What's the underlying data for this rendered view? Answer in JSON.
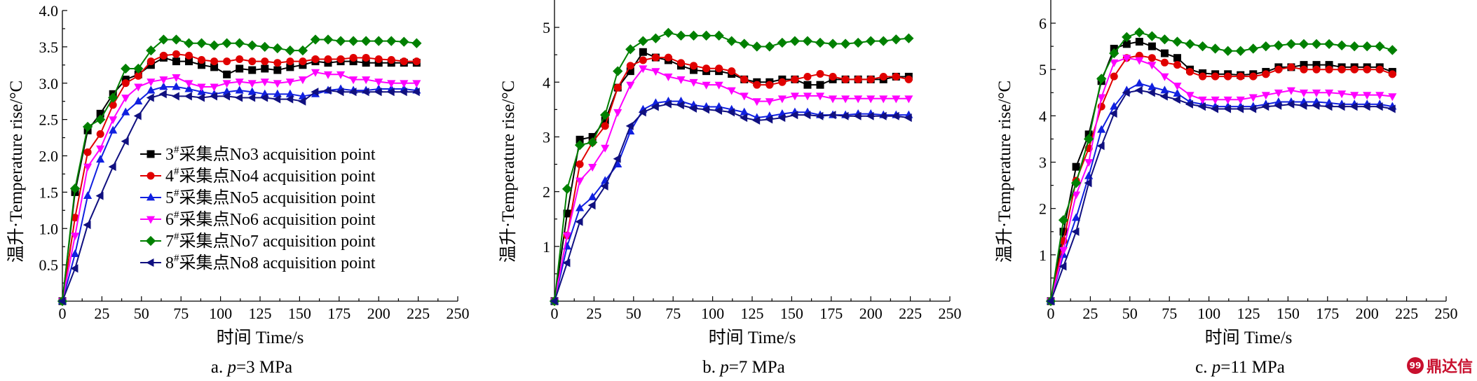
{
  "watermark": {
    "text": "鼎达信"
  },
  "legend": {
    "entries": [
      {
        "sup": "#",
        "pre": "3",
        "text": "采集点No3 acquisition point",
        "color": "#000000",
        "marker": "square"
      },
      {
        "sup": "#",
        "pre": "4",
        "text": "采集点No4 acquisition point",
        "color": "#e00000",
        "marker": "circle"
      },
      {
        "sup": "#",
        "pre": "5",
        "text": "采集点No5 acquisition point",
        "color": "#1020e0",
        "marker": "triangle-up"
      },
      {
        "sup": "#",
        "pre": "6",
        "text": "采集点No6 acquisition point",
        "color": "#ff00ff",
        "marker": "triangle-down"
      },
      {
        "sup": "#",
        "pre": "7",
        "text": "采集点No7 acquisition point",
        "color": "#008000",
        "marker": "diamond"
      },
      {
        "sup": "#",
        "pre": "8",
        "text": "采集点No8 acquisition point",
        "color": "#101080",
        "marker": "triangle-left"
      }
    ]
  },
  "chart_data": [
    {
      "type": "line",
      "caption": {
        "prefix": "a. ",
        "italic": "p",
        "suffix": "=3 MPa"
      },
      "xlabel": "时间 Time/s",
      "ylabel": "温升·Temperature rise/°C",
      "xlim": [
        0,
        250
      ],
      "ylim": [
        0,
        4.0
      ],
      "xticks": [
        0,
        25,
        50,
        75,
        100,
        125,
        150,
        175,
        200,
        225,
        250
      ],
      "yticks": [
        0.5,
        1.0,
        1.5,
        2.0,
        2.5,
        3.0,
        3.5,
        4.0
      ],
      "ytick_labels": [
        "0.5",
        "1.0",
        "1.5",
        "2.0",
        "2.5",
        "3.0",
        "3.5",
        "4.0"
      ],
      "x": [
        0,
        8,
        16,
        24,
        32,
        40,
        48,
        56,
        64,
        72,
        80,
        88,
        96,
        104,
        112,
        120,
        128,
        136,
        144,
        152,
        160,
        168,
        176,
        184,
        192,
        200,
        208,
        216,
        224
      ],
      "series": [
        {
          "name": "3#采集点No3 acquisition point",
          "color": "#000000",
          "marker": "square",
          "values": [
            0,
            1.5,
            2.35,
            2.58,
            2.85,
            3.05,
            3.12,
            3.25,
            3.35,
            3.3,
            3.3,
            3.25,
            3.22,
            3.12,
            3.2,
            3.18,
            3.2,
            3.18,
            3.22,
            3.25,
            3.3,
            3.28,
            3.3,
            3.3,
            3.28,
            3.28,
            3.28,
            3.28,
            3.28
          ]
        },
        {
          "name": "4#采集点No4 acquisition point",
          "color": "#e00000",
          "marker": "circle",
          "values": [
            0,
            1.15,
            2.05,
            2.3,
            2.7,
            3.0,
            3.1,
            3.3,
            3.38,
            3.4,
            3.38,
            3.32,
            3.3,
            3.3,
            3.33,
            3.3,
            3.3,
            3.28,
            3.3,
            3.3,
            3.33,
            3.33,
            3.33,
            3.35,
            3.35,
            3.33,
            3.32,
            3.3,
            3.3
          ]
        },
        {
          "name": "5#采集点No5 acquisition point",
          "color": "#1020e0",
          "marker": "triangle-up",
          "values": [
            0,
            0.65,
            1.45,
            1.95,
            2.35,
            2.6,
            2.75,
            2.9,
            2.95,
            2.95,
            2.92,
            2.88,
            2.85,
            2.88,
            2.9,
            2.88,
            2.85,
            2.85,
            2.85,
            2.82,
            2.85,
            2.9,
            2.92,
            2.9,
            2.9,
            2.92,
            2.92,
            2.92,
            2.9
          ]
        },
        {
          "name": "6#采集点No6 acquisition point",
          "color": "#ff00ff",
          "marker": "triangle-down",
          "values": [
            0,
            0.9,
            1.85,
            2.1,
            2.5,
            2.8,
            2.95,
            3.02,
            3.05,
            3.08,
            3.0,
            2.95,
            2.95,
            3.0,
            3.02,
            3.0,
            3.02,
            3.0,
            3.02,
            3.05,
            3.15,
            3.12,
            3.12,
            3.05,
            3.05,
            3.02,
            3.0,
            3.0,
            3.0
          ]
        },
        {
          "name": "7#采集点No7 acquisition point",
          "color": "#008000",
          "marker": "diamond",
          "values": [
            0,
            1.55,
            2.4,
            2.5,
            2.8,
            3.2,
            3.2,
            3.45,
            3.6,
            3.6,
            3.55,
            3.55,
            3.52,
            3.55,
            3.55,
            3.52,
            3.5,
            3.48,
            3.45,
            3.45,
            3.6,
            3.6,
            3.58,
            3.58,
            3.58,
            3.58,
            3.58,
            3.57,
            3.55
          ]
        },
        {
          "name": "8#采集点No8 acquisition point",
          "color": "#101080",
          "marker": "triangle-left",
          "values": [
            0,
            0.45,
            1.05,
            1.45,
            1.85,
            2.2,
            2.55,
            2.8,
            2.85,
            2.82,
            2.82,
            2.8,
            2.82,
            2.82,
            2.8,
            2.8,
            2.8,
            2.78,
            2.78,
            2.75,
            2.88,
            2.9,
            2.88,
            2.88,
            2.88,
            2.88,
            2.88,
            2.88,
            2.88
          ]
        }
      ]
    },
    {
      "type": "line",
      "caption": {
        "prefix": "b. ",
        "italic": "p",
        "suffix": "=7 MPa"
      },
      "xlabel": "时间 Time/s",
      "ylabel": "温升·Temperature rise/°C",
      "xlim": [
        0,
        250
      ],
      "ylim": [
        0,
        5.5
      ],
      "xticks": [
        0,
        25,
        50,
        75,
        100,
        125,
        150,
        175,
        200,
        225,
        250
      ],
      "yticks": [
        1,
        2,
        3,
        4,
        5
      ],
      "ytick_labels": [
        "1",
        "2",
        "3",
        "4",
        "5"
      ],
      "x": [
        0,
        8,
        16,
        24,
        32,
        40,
        48,
        56,
        64,
        72,
        80,
        88,
        96,
        104,
        112,
        120,
        128,
        136,
        144,
        152,
        160,
        168,
        176,
        184,
        192,
        200,
        208,
        216,
        224
      ],
      "series": [
        {
          "name": "3#采集点No3 acquisition point",
          "color": "#000000",
          "marker": "square",
          "values": [
            0,
            1.6,
            2.95,
            3.0,
            3.3,
            3.9,
            4.2,
            4.55,
            4.45,
            4.4,
            4.3,
            4.22,
            4.2,
            4.2,
            4.15,
            4.05,
            4.0,
            4.0,
            4.05,
            4.05,
            3.95,
            3.95,
            4.05,
            4.05,
            4.05,
            4.05,
            4.05,
            4.1,
            4.1
          ]
        },
        {
          "name": "4#采集点No4 acquisition point",
          "color": "#e00000",
          "marker": "circle",
          "values": [
            0,
            1.2,
            2.5,
            2.9,
            3.2,
            3.9,
            4.3,
            4.4,
            4.45,
            4.45,
            4.35,
            4.3,
            4.25,
            4.25,
            4.2,
            4.05,
            3.95,
            3.95,
            4.0,
            4.05,
            4.1,
            4.15,
            4.1,
            4.05,
            4.05,
            4.05,
            4.1,
            4.1,
            4.05
          ]
        },
        {
          "name": "5#采集点No5 acquisition point",
          "color": "#1020e0",
          "marker": "triangle-up",
          "values": [
            0,
            1.0,
            1.7,
            1.9,
            2.2,
            2.5,
            3.1,
            3.5,
            3.62,
            3.65,
            3.65,
            3.58,
            3.55,
            3.55,
            3.5,
            3.45,
            3.35,
            3.38,
            3.42,
            3.45,
            3.45,
            3.4,
            3.4,
            3.4,
            3.42,
            3.42,
            3.4,
            3.4,
            3.4
          ]
        },
        {
          "name": "6#采集点No6 acquisition point",
          "color": "#ff00ff",
          "marker": "triangle-down",
          "values": [
            0,
            1.2,
            2.2,
            2.45,
            2.8,
            3.45,
            3.95,
            4.25,
            4.2,
            4.1,
            4.05,
            4.0,
            3.95,
            3.95,
            3.85,
            3.75,
            3.65,
            3.65,
            3.7,
            3.75,
            3.75,
            3.75,
            3.7,
            3.7,
            3.7,
            3.7,
            3.7,
            3.7,
            3.7
          ]
        },
        {
          "name": "7#采集点No7 acquisition point",
          "color": "#008000",
          "marker": "diamond",
          "values": [
            0,
            2.05,
            2.85,
            2.9,
            3.4,
            4.2,
            4.6,
            4.75,
            4.8,
            4.9,
            4.85,
            4.85,
            4.85,
            4.85,
            4.75,
            4.7,
            4.65,
            4.65,
            4.72,
            4.75,
            4.75,
            4.72,
            4.7,
            4.7,
            4.72,
            4.75,
            4.75,
            4.78,
            4.8
          ]
        },
        {
          "name": "8#采集点No8 acquisition point",
          "color": "#101080",
          "marker": "triangle-left",
          "values": [
            0,
            0.7,
            1.45,
            1.75,
            2.1,
            2.6,
            3.2,
            3.45,
            3.55,
            3.6,
            3.58,
            3.52,
            3.5,
            3.48,
            3.45,
            3.35,
            3.3,
            3.32,
            3.35,
            3.4,
            3.4,
            3.38,
            3.4,
            3.38,
            3.38,
            3.38,
            3.38,
            3.38,
            3.35
          ]
        }
      ]
    },
    {
      "type": "line",
      "caption": {
        "prefix": "c. ",
        "italic": "p",
        "suffix": "=11 MPa"
      },
      "xlabel": "时间 Time/s",
      "ylabel": "温升·Temperature rise/°C",
      "xlim": [
        0,
        250
      ],
      "ylim": [
        0,
        6.5
      ],
      "xticks": [
        0,
        25,
        50,
        75,
        100,
        125,
        150,
        175,
        200,
        225,
        250
      ],
      "yticks": [
        1,
        2,
        3,
        4,
        5,
        6
      ],
      "ytick_labels": [
        "1",
        "2",
        "3",
        "4",
        "5",
        "6"
      ],
      "x": [
        0,
        8,
        16,
        24,
        32,
        40,
        48,
        56,
        64,
        72,
        80,
        88,
        96,
        104,
        112,
        120,
        128,
        136,
        144,
        152,
        160,
        168,
        176,
        184,
        192,
        200,
        208,
        216
      ],
      "series": [
        {
          "name": "3#采集点No3 acquisition point",
          "color": "#000000",
          "marker": "square",
          "values": [
            0,
            1.5,
            2.9,
            3.6,
            4.75,
            5.45,
            5.55,
            5.6,
            5.5,
            5.35,
            5.25,
            5.0,
            4.92,
            4.9,
            4.9,
            4.88,
            4.9,
            4.95,
            5.05,
            5.05,
            5.1,
            5.1,
            5.1,
            5.05,
            5.05,
            5.05,
            5.05,
            4.95
          ]
        },
        {
          "name": "4#采集点No4 acquisition point",
          "color": "#e00000",
          "marker": "circle",
          "values": [
            0,
            1.3,
            2.6,
            3.3,
            4.2,
            4.85,
            5.25,
            5.3,
            5.25,
            5.15,
            5.1,
            4.95,
            4.85,
            4.85,
            4.85,
            4.85,
            4.85,
            4.9,
            5.0,
            5.05,
            5.0,
            5.0,
            5.0,
            5.0,
            5.0,
            5.0,
            5.0,
            4.9
          ]
        },
        {
          "name": "5#采集点No5 acquisition point",
          "color": "#1020e0",
          "marker": "triangle-up",
          "values": [
            0,
            1.0,
            1.8,
            2.7,
            3.7,
            4.2,
            4.55,
            4.7,
            4.62,
            4.55,
            4.48,
            4.3,
            4.25,
            4.2,
            4.2,
            4.2,
            4.2,
            4.25,
            4.3,
            4.3,
            4.3,
            4.3,
            4.28,
            4.25,
            4.25,
            4.25,
            4.25,
            4.2
          ]
        },
        {
          "name": "6#采集点No6 acquisition point",
          "color": "#ff00ff",
          "marker": "triangle-down",
          "values": [
            0,
            1.1,
            2.3,
            3.0,
            4.4,
            5.15,
            5.25,
            5.2,
            5.1,
            4.85,
            4.65,
            4.45,
            4.35,
            4.35,
            4.35,
            4.35,
            4.4,
            4.45,
            4.5,
            4.55,
            4.5,
            4.5,
            4.5,
            4.48,
            4.45,
            4.45,
            4.45,
            4.42
          ]
        },
        {
          "name": "7#采集点No7 acquisition point",
          "color": "#008000",
          "marker": "diamond",
          "values": [
            0,
            1.75,
            2.55,
            3.5,
            4.8,
            5.35,
            5.7,
            5.8,
            5.72,
            5.65,
            5.6,
            5.55,
            5.5,
            5.45,
            5.4,
            5.4,
            5.45,
            5.5,
            5.52,
            5.55,
            5.55,
            5.55,
            5.55,
            5.52,
            5.5,
            5.5,
            5.5,
            5.42
          ]
        },
        {
          "name": "8#采集点No8 acquisition point",
          "color": "#101080",
          "marker": "triangle-left",
          "values": [
            0,
            0.75,
            1.5,
            2.55,
            3.35,
            4.05,
            4.5,
            4.55,
            4.5,
            4.42,
            4.35,
            4.25,
            4.2,
            4.15,
            4.15,
            4.15,
            4.15,
            4.2,
            4.22,
            4.25,
            4.22,
            4.22,
            4.2,
            4.2,
            4.2,
            4.2,
            4.2,
            4.15
          ]
        }
      ]
    }
  ]
}
